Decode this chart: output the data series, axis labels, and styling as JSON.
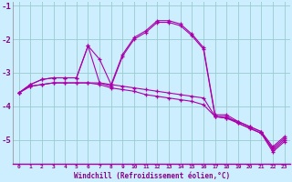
{
  "background_color": "#cceeff",
  "grid_color": "#99cccc",
  "line_color": "#aa00aa",
  "axis_label_color": "#880088",
  "xlabel": "Windchill (Refroidissement éolien,°C)",
  "hours": [
    0,
    1,
    2,
    3,
    4,
    5,
    6,
    7,
    8,
    9,
    10,
    11,
    12,
    13,
    14,
    15,
    16,
    17,
    18,
    19,
    20,
    21,
    22,
    23
  ],
  "s1": [
    -3.6,
    -3.4,
    -3.35,
    -3.3,
    -3.3,
    -3.3,
    -3.3,
    -3.3,
    -3.35,
    -3.4,
    -3.45,
    -3.5,
    -3.55,
    -3.6,
    -3.65,
    -3.7,
    -3.75,
    -4.3,
    -4.35,
    -4.45,
    -4.6,
    -4.75,
    -5.3,
    -5.0
  ],
  "s2": [
    -3.6,
    -3.4,
    -3.35,
    -3.3,
    -3.3,
    -3.3,
    -3.3,
    -3.35,
    -3.45,
    -3.5,
    -3.55,
    -3.65,
    -3.7,
    -3.75,
    -3.8,
    -3.85,
    -3.95,
    -4.3,
    -4.35,
    -4.5,
    -4.65,
    -4.8,
    -5.35,
    -5.05
  ],
  "s3": [
    -3.6,
    -3.35,
    -3.2,
    -3.15,
    -3.15,
    -3.15,
    -2.2,
    -3.3,
    -3.4,
    -2.5,
    -2.0,
    -1.8,
    -1.5,
    -1.5,
    -1.6,
    -1.9,
    -2.3,
    -4.3,
    -4.3,
    -4.5,
    -4.65,
    -4.8,
    -5.25,
    -4.95
  ],
  "s4": [
    -3.6,
    -3.35,
    -3.2,
    -3.15,
    -3.15,
    -3.15,
    -2.2,
    -2.6,
    -3.35,
    -2.45,
    -1.95,
    -1.75,
    -1.45,
    -1.45,
    -1.55,
    -1.85,
    -2.25,
    -4.25,
    -4.25,
    -4.45,
    -4.6,
    -4.75,
    -5.2,
    -4.9
  ],
  "yticks": [
    -5,
    -4,
    -3,
    -2,
    -1
  ],
  "ylim": [
    -5.7,
    -0.9
  ]
}
